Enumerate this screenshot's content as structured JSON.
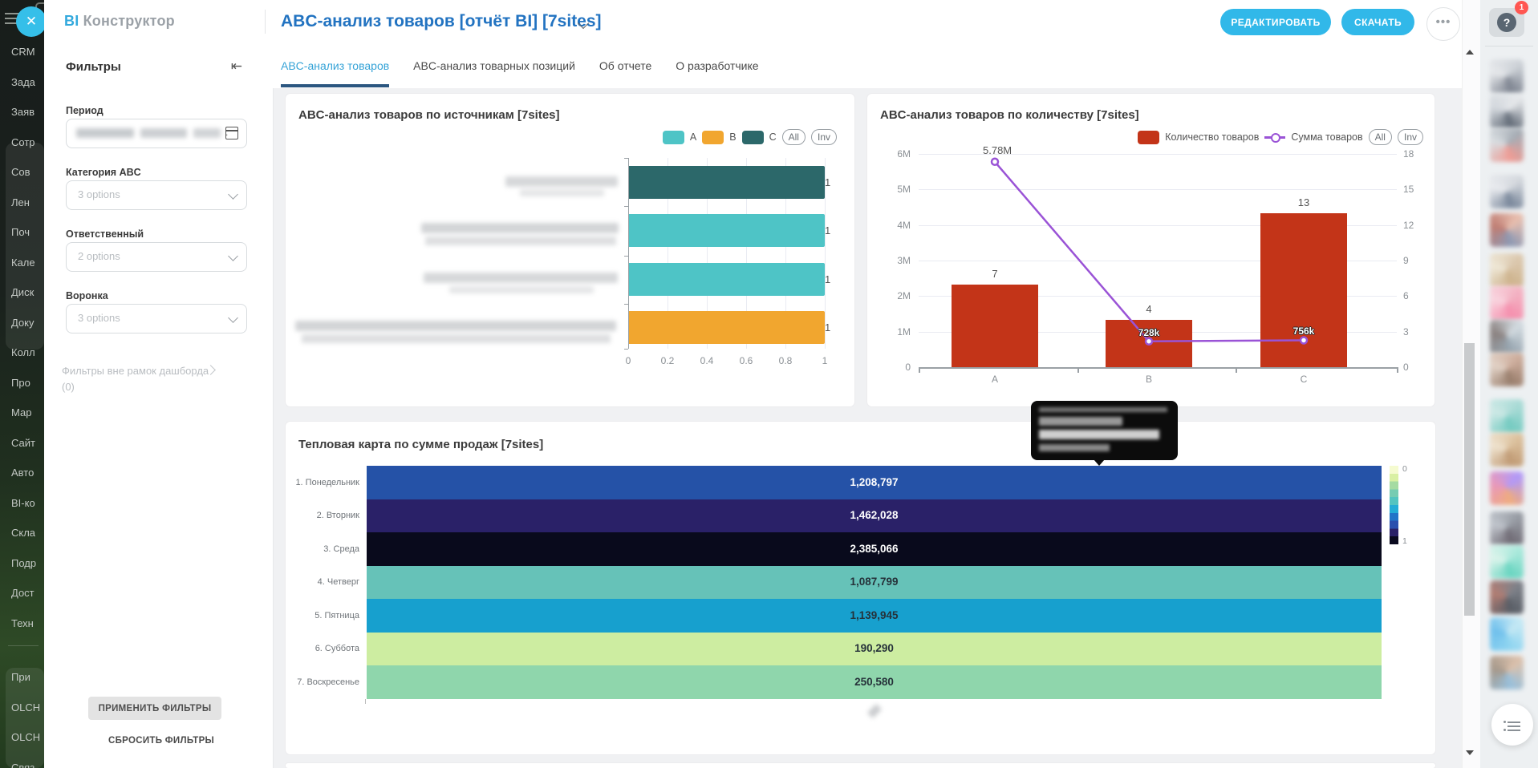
{
  "window": {
    "logo_bi": "BI",
    "logo_name": "Конструктор",
    "title": "ABC-анализ товаров [отчёт BI] [7sites]",
    "edit_button": "РЕДАКТИРОВАТЬ",
    "download_button": "СКАЧАТЬ",
    "more_button": "•••",
    "help_badge": "1",
    "help_glyph": "?"
  },
  "left_rail": {
    "items": [
      "CRM",
      "Зада",
      "Заяв",
      "Сотр",
      "Сов",
      "Лен",
      "Поч",
      "Кале",
      "Диск",
      "Доку",
      "Колл",
      "Про",
      "Мар",
      "Сайт",
      "Авто",
      "BI-ко",
      "Скла",
      "Подр",
      "Дост",
      "Техн",
      "При",
      "OLCH",
      "OLCH",
      "Связ"
    ]
  },
  "filters": {
    "title": "Фильтры",
    "collapse_glyph": "⇤",
    "period_label": "Период",
    "fields": [
      {
        "label": "Категория ABC",
        "placeholder": "3 options"
      },
      {
        "label": "Ответственный",
        "placeholder": "2 options"
      },
      {
        "label": "Воронка",
        "placeholder": "3 options"
      }
    ],
    "outside_label": "Фильтры вне рамок дашборда",
    "outside_count": "(0)",
    "apply_button": "ПРИМЕНИТЬ ФИЛЬТРЫ",
    "reset_button": "СБРОСИТЬ ФИЛЬТРЫ"
  },
  "tabs": {
    "active_index": 0,
    "items": [
      "ABC-анализ товаров",
      "ABC-анализ товарных позиций",
      "Об отчете",
      "О разработчике"
    ]
  },
  "chart_data": [
    {
      "type": "bar",
      "orientation": "horizontal",
      "title": "ABC-анализ товаров по источникам [7sites]",
      "legend": [
        {
          "label": "A",
          "color": "#4ec4c6"
        },
        {
          "label": "B",
          "color": "#f1a62f"
        },
        {
          "label": "C",
          "color": "#2c686a"
        }
      ],
      "toolbar": [
        "All",
        "Inv"
      ],
      "categories_redacted": true,
      "rows": [
        {
          "series": "C",
          "value": 1
        },
        {
          "series": "A",
          "value": 1
        },
        {
          "series": "A",
          "value": 1
        },
        {
          "series": "B",
          "value": 1
        }
      ],
      "value_labels": [
        "1",
        "1",
        "1",
        "1"
      ],
      "xlim": [
        0,
        1
      ],
      "xticks": [
        "0",
        "0.2",
        "0.4",
        "0.6",
        "0.8",
        "1"
      ]
    },
    {
      "type": "combo",
      "title": "ABC-анализ товаров по количеству [7sites]",
      "categories": [
        "A",
        "B",
        "C"
      ],
      "series": [
        {
          "name": "Количество товаров",
          "type": "bar",
          "color": "#c33418",
          "axis": "right",
          "values": [
            7,
            4,
            13
          ],
          "labels": [
            "7",
            "4",
            "13"
          ]
        },
        {
          "name": "Сумма товаров",
          "type": "line",
          "color": "#9a53d6",
          "axis": "left",
          "values": [
            5780000,
            728000,
            756000
          ],
          "labels": [
            "5.78M",
            "728k",
            "756k"
          ]
        }
      ],
      "left_axis": {
        "max": 6000000,
        "ticks": [
          "6M",
          "5M",
          "4M",
          "3M",
          "2M",
          "1M",
          "0"
        ]
      },
      "right_axis": {
        "max": 18,
        "ticks": [
          "18",
          "15",
          "12",
          "9",
          "6",
          "3",
          "0"
        ]
      },
      "toolbar": [
        "All",
        "Inv"
      ]
    },
    {
      "type": "heatmap",
      "title": "Тепловая карта по сумме продаж [7sites]",
      "rows": [
        {
          "label": "1. Понедельник",
          "value": "1,208,797",
          "color": "#2552a7",
          "text_color": "#ffffff"
        },
        {
          "label": "2. Вторник",
          "value": "1,462,028",
          "color": "#2a2168",
          "text_color": "#ffffff"
        },
        {
          "label": "3. Среда",
          "value": "2,385,066",
          "color": "#090a1c",
          "text_color": "#ffffff"
        },
        {
          "label": "4. Четверг",
          "value": "1,087,799",
          "color": "#66c2b8",
          "text_color": "#26323a"
        },
        {
          "label": "5. Пятница",
          "value": "1,139,945",
          "color": "#17a0ce",
          "text_color": "#26323a"
        },
        {
          "label": "6. Суббота",
          "value": "190,290",
          "color": "#cdeda1",
          "text_color": "#26323a"
        },
        {
          "label": "7. Воскресенье",
          "value": "250,580",
          "color": "#8fd6ac",
          "text_color": "#26323a"
        }
      ],
      "colorbar": {
        "top_label": "0",
        "bottom_label": "1",
        "colors": [
          "#f5fbd0",
          "#d9f0a3",
          "#a5dba2",
          "#76ccb2",
          "#53c4c0",
          "#24acd6",
          "#2274c8",
          "#2a4fae",
          "#2a2168",
          "#0a0a1e"
        ]
      }
    }
  ]
}
